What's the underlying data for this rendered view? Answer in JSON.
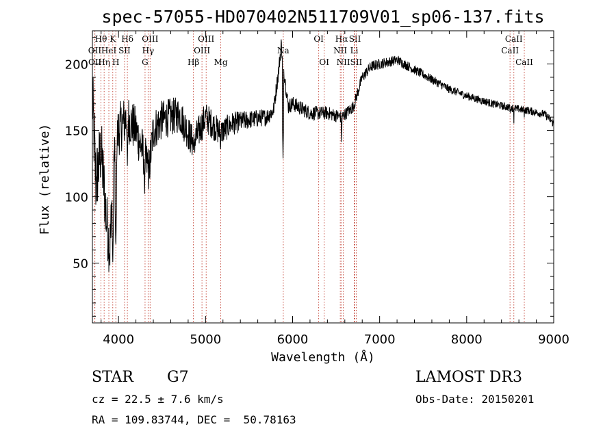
{
  "chart_data": {
    "type": "line",
    "title": "spec-57055-HD070402N511709V01_sp06-137.fits",
    "xlabel": "Wavelength (Å)",
    "ylabel": "Flux (relative)",
    "xlim": [
      3700,
      9000
    ],
    "ylim": [
      5,
      225
    ],
    "x_ticks": [
      4000,
      5000,
      6000,
      7000,
      8000,
      9000
    ],
    "x_tick_labels": [
      "4000",
      "5000",
      "6000",
      "7000",
      "8000",
      "9000"
    ],
    "y_ticks": [
      50,
      100,
      150,
      200
    ],
    "y_tick_labels": [
      "50",
      "100",
      "150",
      "200"
    ],
    "grid": false,
    "series": [
      {
        "color": "#000000",
        "anchors": [
          [
            3700,
            175
          ],
          [
            3740,
            110
          ],
          [
            3800,
            135
          ],
          [
            3860,
            85
          ],
          [
            3900,
            60
          ],
          [
            3950,
            130
          ],
          [
            4000,
            150
          ],
          [
            4100,
            160
          ],
          [
            4200,
            150
          ],
          [
            4300,
            130
          ],
          [
            4350,
            120
          ],
          [
            4400,
            150
          ],
          [
            4500,
            158
          ],
          [
            4700,
            162
          ],
          [
            4860,
            140
          ],
          [
            5000,
            160
          ],
          [
            5170,
            148
          ],
          [
            5300,
            155
          ],
          [
            5500,
            158
          ],
          [
            5700,
            160
          ],
          [
            5780,
            165
          ],
          [
            5840,
            195
          ],
          [
            5870,
            215
          ],
          [
            5900,
            195
          ],
          [
            5950,
            168
          ],
          [
            6000,
            170
          ],
          [
            6200,
            163
          ],
          [
            6400,
            163
          ],
          [
            6560,
            160
          ],
          [
            6600,
            162
          ],
          [
            6700,
            168
          ],
          [
            6800,
            190
          ],
          [
            6900,
            198
          ],
          [
            7000,
            200
          ],
          [
            7200,
            203
          ],
          [
            7500,
            192
          ],
          [
            7800,
            181
          ],
          [
            8000,
            176
          ],
          [
            8300,
            170
          ],
          [
            8500,
            167
          ],
          [
            8700,
            165
          ],
          [
            8900,
            162
          ],
          [
            8960,
            158
          ],
          [
            9000,
            155
          ]
        ],
        "dips": [
          [
            3934,
            45
          ],
          [
            3969,
            55
          ],
          [
            4102,
            120
          ],
          [
            4300,
            100
          ],
          [
            4340,
            130
          ],
          [
            4861,
            135
          ],
          [
            5172,
            130
          ],
          [
            5890,
            125
          ],
          [
            6563,
            135
          ],
          [
            8498,
            155
          ],
          [
            8542,
            155
          ],
          [
            8662,
            155
          ]
        ],
        "noise": [
          [
            3700,
            30
          ],
          [
            4000,
            20
          ],
          [
            4500,
            15
          ],
          [
            5000,
            12
          ],
          [
            5500,
            7
          ],
          [
            5900,
            6
          ],
          [
            6500,
            5
          ],
          [
            7000,
            4
          ],
          [
            8000,
            3
          ],
          [
            9000,
            3
          ]
        ]
      }
    ],
    "spectral_lines": [
      {
        "label": "OII",
        "wavelength": 3727,
        "row": 2
      },
      {
        "label": "OII",
        "wavelength": 3729,
        "row": 3
      },
      {
        "label": "Hθ",
        "wavelength": 3798,
        "row": 1
      },
      {
        "label": "Hη",
        "wavelength": 3835,
        "row": 3
      },
      {
        "label": "HeI",
        "wavelength": 3889,
        "row": 2
      },
      {
        "label": "K",
        "wavelength": 3934,
        "row": 1
      },
      {
        "label": "SII",
        "wavelength": 4069,
        "row": 2
      },
      {
        "label": "H",
        "wavelength": 3969,
        "row": 3
      },
      {
        "label": "Hδ",
        "wavelength": 4102,
        "row": 1
      },
      {
        "label": "OIII",
        "wavelength": 4363,
        "row": 1
      },
      {
        "label": "Hγ",
        "wavelength": 4340,
        "row": 2
      },
      {
        "label": "G",
        "wavelength": 4305,
        "row": 3
      },
      {
        "label": "Hβ",
        "wavelength": 4861,
        "row": 3
      },
      {
        "label": "OIII",
        "wavelength": 5007,
        "row": 1
      },
      {
        "label": "OIII",
        "wavelength": 4959,
        "row": 2
      },
      {
        "label": "Mg",
        "wavelength": 5175,
        "row": 3
      },
      {
        "label": "Na",
        "wavelength": 5893,
        "row": 2
      },
      {
        "label": "OI",
        "wavelength": 6300,
        "row": 1
      },
      {
        "label": "OI",
        "wavelength": 6363,
        "row": 3
      },
      {
        "label": "Hα",
        "wavelength": 6563,
        "row": 1
      },
      {
        "label": "NII",
        "wavelength": 6548,
        "row": 2
      },
      {
        "label": "NII",
        "wavelength": 6583,
        "row": 3
      },
      {
        "label": "SII",
        "wavelength": 6716,
        "row": 1
      },
      {
        "label": "Li",
        "wavelength": 6708,
        "row": 2
      },
      {
        "label": "SII",
        "wavelength": 6731,
        "row": 3
      },
      {
        "label": "CaII",
        "wavelength": 8542,
        "row": 1
      },
      {
        "label": "CaII",
        "wavelength": 8498,
        "row": 2
      },
      {
        "label": "CaII",
        "wavelength": 8662,
        "row": 3
      }
    ]
  },
  "info": {
    "class": "STAR",
    "subclass": "G7",
    "survey": "LAMOST DR3",
    "redshift": "cz = 22.5 ± 7.6 km/s",
    "obs_date": "Obs-Date: 20150201",
    "coords": "RA = 109.83744, DEC =  50.78163"
  }
}
